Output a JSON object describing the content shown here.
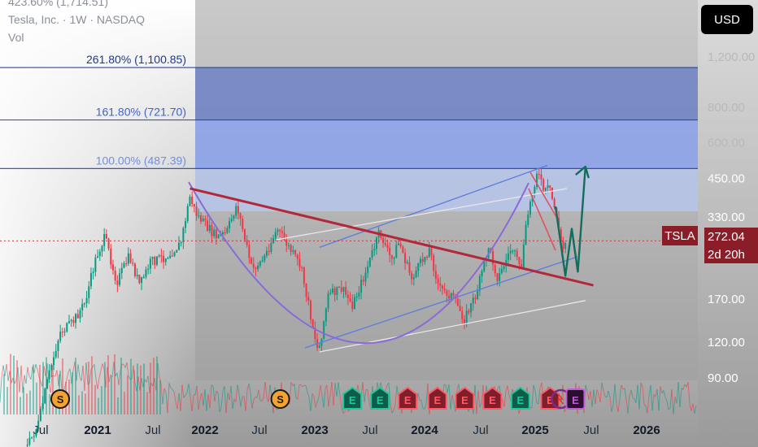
{
  "header": {
    "title": "Tesla, Inc. · 1W · NASDAQ",
    "sub": "Vol",
    "top_partial": "423.60% (1,714.51)"
  },
  "currency_button": "USD",
  "symbol_tag": "TSLA",
  "last_price": "272.04",
  "countdown": "2d 20h",
  "colors": {
    "bull": "#089981",
    "bear": "#f23645",
    "trendline": "#b2283b",
    "fib_line": "#1e3fa8",
    "fib_dark": "#6f82c6",
    "fib_mid": "#8ea3ea",
    "fib_light": "#b7c6ea",
    "arrow": "#126d5d",
    "arc": "#8a6ad8",
    "channel": "#5b7be0",
    "tag_bg": "#8a1d28",
    "earnings_bull": "#0f5c4c",
    "earnings_bear": "#7e1f2b",
    "earnings_purple": "#6f1c77"
  },
  "chart_data": {
    "type": "candlestick",
    "title": "Tesla, Inc. · 1W · NASDAQ",
    "y_scale": "log",
    "y_ticks": [
      "1,200.00",
      "800.00",
      "600.00",
      "450.00",
      "330.00",
      "170.00",
      "120.00",
      "90.00"
    ],
    "x_ticks": [
      "Jul",
      "2021",
      "Jul",
      "2022",
      "Jul",
      "2023",
      "Jul",
      "2024",
      "Jul",
      "2025",
      "Jul",
      "2026"
    ],
    "fib_levels": [
      {
        "label": "261.80% (1,100.85)",
        "price": 1100.85
      },
      {
        "label": "161.80% (721.70)",
        "price": 721.7
      },
      {
        "label": "100.00% (487.39)",
        "price": 487.39
      },
      {
        "label": "",
        "price": 345
      }
    ],
    "current_price": 272.04,
    "trendline": {
      "from": [
        "2021-11-01",
        415
      ],
      "to": [
        "2025-06-20",
        190
      ]
    },
    "channel_upper": {
      "from": [
        "2023-01-01",
        258
      ],
      "to": [
        "2025-01-20",
        500
      ]
    },
    "channel_lower": {
      "from": [
        "2023-01-01",
        111
      ],
      "to": [
        "2025-05-25",
        168
      ]
    },
    "projection": [
      [
        "2025-03-20",
        205
      ],
      [
        "2025-04-10",
        300
      ],
      [
        "2025-04-30",
        212
      ],
      [
        "2025-05-25",
        495
      ]
    ],
    "price_path": [
      [
        "2020-05-15",
        52
      ],
      [
        "2020-06-20",
        62
      ],
      [
        "2020-07-20",
        88
      ],
      [
        "2020-08-30",
        130
      ],
      [
        "2020-10-10",
        140
      ],
      [
        "2020-11-20",
        165
      ],
      [
        "2020-12-28",
        240
      ],
      [
        "2021-01-25",
        280
      ],
      [
        "2021-03-05",
        195
      ],
      [
        "2021-04-15",
        240
      ],
      [
        "2021-05-20",
        190
      ],
      [
        "2021-06-25",
        230
      ],
      [
        "2021-08-15",
        240
      ],
      [
        "2021-10-01",
        265
      ],
      [
        "2021-11-01",
        390
      ],
      [
        "2021-11-20",
        340
      ],
      [
        "2021-12-20",
        310
      ],
      [
        "2022-01-28",
        280
      ],
      [
        "2022-03-01",
        290
      ],
      [
        "2022-04-04",
        365
      ],
      [
        "2022-05-24",
        215
      ],
      [
        "2022-07-01",
        235
      ],
      [
        "2022-08-15",
        300
      ],
      [
        "2022-09-20",
        260
      ],
      [
        "2022-11-01",
        220
      ],
      [
        "2022-12-28",
        110
      ],
      [
        "2023-01-30",
        175
      ],
      [
        "2023-03-15",
        185
      ],
      [
        "2023-04-20",
        162
      ],
      [
        "2023-06-01",
        210
      ],
      [
        "2023-07-18",
        292
      ],
      [
        "2023-08-25",
        232
      ],
      [
        "2023-09-20",
        270
      ],
      [
        "2023-10-30",
        200
      ],
      [
        "2023-12-28",
        255
      ],
      [
        "2024-01-30",
        185
      ],
      [
        "2024-03-10",
        175
      ],
      [
        "2024-04-22",
        145
      ],
      [
        "2024-06-01",
        178
      ],
      [
        "2024-07-10",
        260
      ],
      [
        "2024-08-10",
        200
      ],
      [
        "2024-09-25",
        260
      ],
      [
        "2024-10-24",
        212
      ],
      [
        "2024-11-15",
        330
      ],
      [
        "2024-12-17",
        480
      ],
      [
        "2025-01-10",
        400
      ],
      [
        "2025-01-25",
        420
      ],
      [
        "2025-02-20",
        330
      ],
      [
        "2025-03-10",
        250
      ],
      [
        "2025-03-22",
        272
      ]
    ],
    "events": [
      {
        "type": "dividend",
        "label": "S",
        "date": "2020-08-31"
      },
      {
        "type": "dividend",
        "label": "S",
        "date": "2022-08-25"
      },
      {
        "type": "earnings",
        "label": "E",
        "date": "2023-04-19",
        "result": "bull"
      },
      {
        "type": "earnings",
        "label": "E",
        "date": "2023-07-19",
        "result": "bull"
      },
      {
        "type": "earnings",
        "label": "E",
        "date": "2023-10-18",
        "result": "bear"
      },
      {
        "type": "earnings",
        "label": "E",
        "date": "2024-01-24",
        "result": "bear"
      },
      {
        "type": "earnings",
        "label": "E",
        "date": "2024-04-23",
        "result": "bear"
      },
      {
        "type": "earnings",
        "label": "E",
        "date": "2024-07-23",
        "result": "bear"
      },
      {
        "type": "earnings",
        "label": "E",
        "date": "2024-10-23",
        "result": "bull"
      },
      {
        "type": "earnings",
        "label": "E",
        "date": "2025-01-29",
        "result": "bear"
      },
      {
        "type": "split",
        "label": "",
        "date": "2025-03-05"
      },
      {
        "type": "earnings",
        "label": "E",
        "date": "2025-04-22",
        "result": "purple"
      }
    ]
  }
}
